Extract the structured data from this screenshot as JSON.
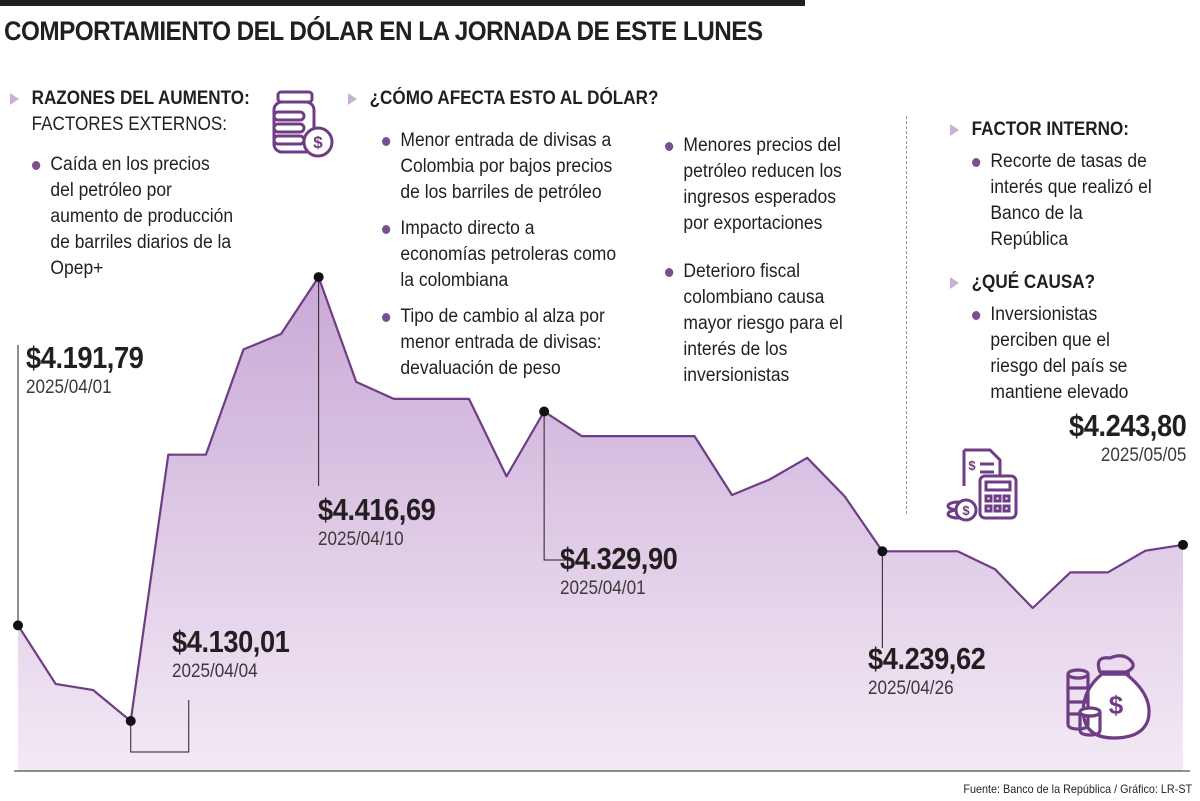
{
  "title": "COMPORTAMIENTO DEL DÓLAR EN LA JORNADA DE ESTE LUNES",
  "colors": {
    "line": "#6e3d85",
    "fill_top": "#c9a8d6",
    "fill_bottom": "#f3eaf5",
    "accent": "#7b4f8f"
  },
  "sections": {
    "razones": {
      "heading": "RAZONES DEL AUMENTO:",
      "subheading": "FACTORES EXTERNOS:",
      "bullets": [
        "Caída en los precios del petróleo por aumento de producción de barriles diarios de la Opep+"
      ]
    },
    "como_afecta": {
      "heading": "¿CÓMO AFECTA ESTO AL DÓLAR?",
      "bullets_left": [
        "Menor entrada de divisas a Colombia por bajos precios de los barriles de petróleo",
        "Impacto directo a economías petroleras como la colombiana",
        "Tipo de cambio al alza por menor entrada de divisas: devaluación de peso"
      ],
      "bullets_right": [
        "Menores precios del petróleo reducen los ingresos esperados por exportaciones",
        "Deterioro fiscal colombiano causa mayor riesgo para el interés de los inversionistas"
      ]
    },
    "factor_interno": {
      "heading": "FACTOR INTERNO:",
      "bullets": [
        "Recorte de tasas de interés que realizó el Banco de la República"
      ]
    },
    "que_causa": {
      "heading": "¿QUÉ CAUSA?",
      "bullets": [
        "Inversionistas perciben que el riesgo del país se mantiene elevado"
      ]
    }
  },
  "chart_data": {
    "type": "area",
    "title": "COMPORTAMIENTO DEL DÓLAR EN LA JORNADA DE ESTE LUNES",
    "xlabel": "",
    "ylabel": "",
    "grid": false,
    "ylim": [
      4110,
      4440
    ],
    "values": [
      4191.79,
      4154,
      4150,
      4130.01,
      4302,
      4302,
      4370,
      4380,
      4416.69,
      4349,
      4338,
      4338,
      4338,
      4288,
      4329.9,
      4314,
      4314,
      4314,
      4314,
      4276,
      4286,
      4300,
      4275,
      4239.62,
      4239.62,
      4239.62,
      4228,
      4203,
      4226,
      4226,
      4240,
      4243.8
    ],
    "annotations": [
      {
        "index": 0,
        "value": "$4.191,79",
        "date": "2025/04/01"
      },
      {
        "index": 3,
        "value": "$4.130,01",
        "date": "2025/04/04"
      },
      {
        "index": 8,
        "value": "$4.416,69",
        "date": "2025/04/10"
      },
      {
        "index": 14,
        "value": "$4.329,90",
        "date": "2025/04/01"
      },
      {
        "index": 23,
        "value": "$4.239,62",
        "date": "2025/04/26"
      },
      {
        "index": 31,
        "value": "$4.243,80",
        "date": "2025/05/05"
      }
    ]
  },
  "icons": [
    "coins-jar-icon",
    "calculator-invoice-icon",
    "money-bag-icon"
  ],
  "source": "Fuente: Banco de la República / Gráfico: LR-ST"
}
